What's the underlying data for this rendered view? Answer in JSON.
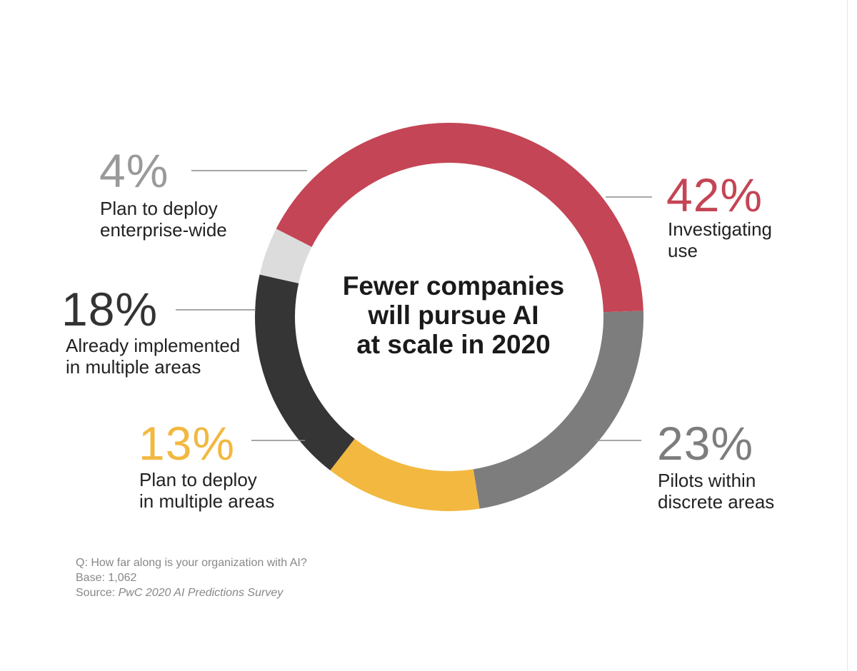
{
  "chart_data": {
    "type": "pie",
    "title": "Fewer companies will pursue AI at scale in 2020",
    "title_lines": [
      "Fewer companies",
      "will pursue AI",
      "at scale in 2020"
    ],
    "slices": [
      {
        "label": "Investigating use",
        "label_lines": [
          "Investigating",
          "use"
        ],
        "value": 42,
        "display": "42%",
        "color": "#C44555"
      },
      {
        "label": "Pilots within discrete areas",
        "label_lines": [
          "Pilots within",
          "discrete areas"
        ],
        "value": 23,
        "display": "23%",
        "color": "#7D7D7D"
      },
      {
        "label": "Plan to deploy in multiple areas",
        "label_lines": [
          "Plan to deploy",
          "in multiple areas"
        ],
        "value": 13,
        "display": "13%",
        "color": "#F2B840"
      },
      {
        "label": "Already implemented in multiple areas",
        "label_lines": [
          "Already implemented",
          "in multiple areas"
        ],
        "value": 18,
        "display": "18%",
        "color": "#353535"
      },
      {
        "label": "Plan to deploy enterprise-wide",
        "label_lines": [
          "Plan to deploy",
          "enterprise-wide"
        ],
        "value": 4,
        "display": "4%",
        "color": "#DCDCDC"
      }
    ]
  },
  "percent_colors": {
    "Investigating use": "#C44555",
    "Pilots within discrete areas": "#7D7D7D",
    "Plan to deploy in multiple areas": "#F2B840",
    "Already implemented in multiple areas": "#333333",
    "Plan to deploy enterprise-wide": "#9A9A9A"
  },
  "footer": {
    "question": "Q: How far along is your organization with AI?",
    "base": "Base: 1,062",
    "source_prefix": "Source: ",
    "source_name": "PwC 2020 AI Predictions Survey"
  }
}
